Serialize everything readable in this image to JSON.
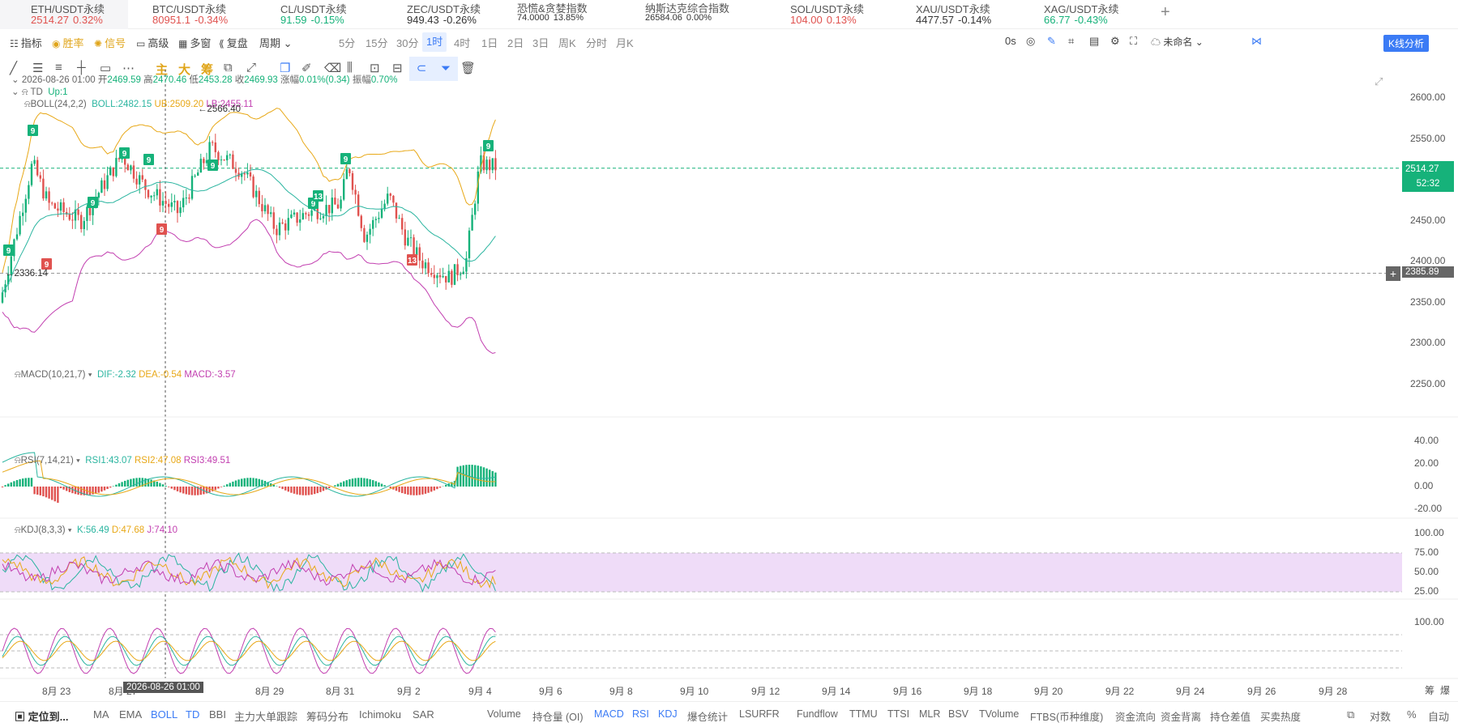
{
  "tickers": [
    {
      "name": "ETH/USDT永续",
      "price": "2514.27",
      "change": "0.32%",
      "dir": "dn",
      "active": true
    },
    {
      "name": "BTC/USDT永续",
      "price": "80951.1",
      "change": "-0.34%",
      "dir": "dn"
    },
    {
      "name": "CL/USDT永续",
      "price": "91.59",
      "change": "-0.15%",
      "dir": "up"
    },
    {
      "name": "ZEC/USDT永续",
      "price": "949.43",
      "change": "-0.26%",
      "dir": "dk"
    },
    {
      "name": "恐慌&贪婪指数",
      "price": "74.0000",
      "change": "13.85%",
      "dir": "dk",
      "small": true
    },
    {
      "name": "纳斯达克综合指数",
      "price": "26584.06",
      "change": "0.00%",
      "dir": "dk",
      "small": true
    },
    {
      "name": "SOL/USDT永续",
      "price": "104.00",
      "change": "0.13%",
      "dir": "dn"
    },
    {
      "name": "XAU/USDT永续",
      "price": "4477.57",
      "change": "-0.14%",
      "dir": "dk"
    },
    {
      "name": "XAG/USDT永续",
      "price": "66.77",
      "change": "-0.43%",
      "dir": "up"
    }
  ],
  "add_tab": "+",
  "toolbar": {
    "indicator": "指标",
    "winrate": "胜率",
    "signal": "信号",
    "advanced": "高级",
    "multiwin": "多窗",
    "replay": "复盘",
    "period": "周期",
    "periods": [
      "5分",
      "15分",
      "30分",
      "1时",
      "4时",
      "1日",
      "2日",
      "3日",
      "周K",
      "分时",
      "月K"
    ],
    "selected_period": "1时",
    "countdown": "0s",
    "layout_name": "未命名",
    "kline_analysis": "K线分析"
  },
  "drawtools": {
    "main": "主",
    "big": "大",
    "chip": "筹"
  },
  "ohlc": {
    "date": "2026-08-26 01:00",
    "open_label": "开",
    "open": "2469.59",
    "high_label": "高",
    "high": "2470.46",
    "low_label": "低",
    "low": "2453.28",
    "close_label": "收",
    "close": "2469.93",
    "chg_label": "涨幅",
    "chg": "0.01%(0.34)",
    "amp_label": "振幅",
    "amp": "0.70%"
  },
  "td": {
    "name": "TD",
    "value": "Up:1"
  },
  "boll": {
    "name": "BOLL(24,2,2)",
    "boll": "BOLL:2482.15",
    "ub": "UB:2509.20",
    "lb": "LB:2455.11"
  },
  "price_marks": {
    "high": "2566.40",
    "low": "2336.14"
  },
  "price_axis": [
    "2600.00",
    "2550.00",
    "2500.00",
    "2450.00",
    "2400.00",
    "2350.00",
    "2300.00",
    "2250.00"
  ],
  "last_price": {
    "price": "2514.27",
    "countdown": "52:32"
  },
  "crosshair_price": "2385.89",
  "macd": {
    "name": "MACD(10,21,7)",
    "dif": "DIF:-2.32",
    "dea": "DEA:-0.54",
    "macd": "MACD:-3.57",
    "axis": [
      "40.00",
      "20.00",
      "0.00",
      "-20.00"
    ]
  },
  "rsi": {
    "name": "RSI(7,14,21)",
    "rsi1": "RSI1:43.07",
    "rsi2": "RSI2:47.08",
    "rsi3": "RSI3:49.51",
    "axis": [
      "100.00",
      "75.00",
      "50.00",
      "25.00"
    ]
  },
  "kdj": {
    "name": "KDJ(8,3,3)",
    "k": "K:56.49",
    "d": "D:47.68",
    "j": "J:74.10",
    "axis": [
      "100.00"
    ]
  },
  "time_axis": [
    "8月 23",
    "8月 27",
    "8月 29",
    "8月 31",
    "9月 2",
    "9月 4",
    "9月 6",
    "9月 8",
    "9月 10",
    "9月 12",
    "9月 14",
    "9月 16",
    "9月 18",
    "9月 20",
    "9月 22",
    "9月 24",
    "9月 26",
    "9月 28"
  ],
  "crosshair_time": "2026-08-26 01:00",
  "axis_modes": {
    "chip": "筹",
    "burst": "爆",
    "log": "对数",
    "pct": "%",
    "auto": "自动"
  },
  "bottom": {
    "locate": "定位到...",
    "main_inds": [
      "MA",
      "EMA",
      "BOLL",
      "TD",
      "BBI",
      "主力大单跟踪",
      "筹码分布",
      "Ichimoku",
      "SAR"
    ],
    "sub_inds": [
      "Volume",
      "持仓量 (OI)",
      "MACD",
      "RSI",
      "KDJ",
      "爆仓统计",
      "LSUR",
      "FR",
      "Fundflow",
      "TTMU",
      "TTSI",
      "MLR",
      "BSV",
      "TVolume",
      "FTBS(币种维度)",
      "资金流向",
      "资金背离",
      "持仓差值",
      "买卖热度"
    ]
  },
  "colors": {
    "up": "#16b27a",
    "down": "#e0524f",
    "accent": "#3b7bf5",
    "boll_mid": "#2bb5a0",
    "boll_ub": "#e8a817",
    "boll_lb": "#c23fb0",
    "rsi_band": "#efdcf8"
  },
  "td_signals": [
    "9",
    "9",
    "9",
    "9",
    "9",
    "9",
    "9",
    "9",
    "9",
    "13",
    "9",
    "9",
    "13"
  ]
}
